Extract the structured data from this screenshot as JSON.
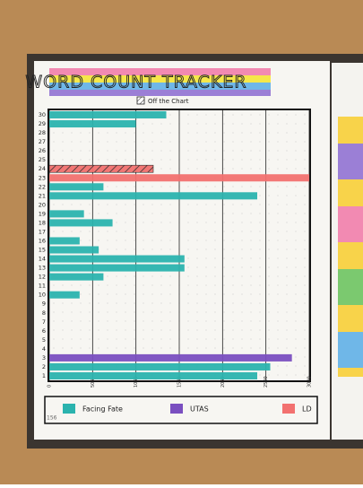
{
  "chart_data": {
    "type": "bar",
    "orientation": "horizontal",
    "title": "WORD COUNT TRACKER",
    "page_number": "156",
    "categories": [
      "1",
      "2",
      "3",
      "4",
      "5",
      "6",
      "7",
      "8",
      "9",
      "10",
      "11",
      "12",
      "13",
      "14",
      "15",
      "16",
      "17",
      "18",
      "19",
      "20",
      "21",
      "22",
      "23",
      "24",
      "25",
      "26",
      "27",
      "28",
      "29",
      "30"
    ],
    "series": [
      {
        "name": "Facing Fate",
        "color": "#2bb3ae",
        "values": [
          2400,
          2550,
          null,
          null,
          null,
          null,
          null,
          null,
          null,
          350,
          null,
          625,
          1560,
          1560,
          570,
          350,
          null,
          730,
          400,
          null,
          2400,
          625,
          null,
          null,
          null,
          null,
          null,
          null,
          1000,
          1350
        ]
      },
      {
        "name": "UTAS",
        "color": "#7a4fc0",
        "values": [
          null,
          null,
          2800,
          null,
          null,
          null,
          null,
          null,
          null,
          null,
          null,
          null,
          null,
          null,
          null,
          null,
          null,
          null,
          null,
          null,
          null,
          null,
          null,
          null,
          null,
          null,
          null,
          null,
          null,
          null
        ]
      },
      {
        "name": "LD",
        "color": "#f2716f",
        "values": [
          null,
          null,
          null,
          null,
          null,
          null,
          null,
          null,
          null,
          null,
          null,
          null,
          null,
          null,
          null,
          null,
          null,
          null,
          null,
          null,
          null,
          null,
          3000,
          null,
          null,
          null,
          null,
          null,
          null,
          null
        ]
      },
      {
        "name": "Off the Chart",
        "color": "#f2716f",
        "hatched": true,
        "values": [
          null,
          null,
          null,
          null,
          null,
          null,
          null,
          null,
          null,
          null,
          null,
          null,
          null,
          null,
          null,
          null,
          null,
          null,
          null,
          null,
          null,
          null,
          null,
          1200,
          null,
          null,
          null,
          null,
          null,
          null
        ]
      }
    ],
    "xlim": [
      0,
      3000
    ],
    "xticks": [
      0,
      500,
      1000,
      1500,
      2000,
      2500,
      3000
    ],
    "grid": true
  }
}
